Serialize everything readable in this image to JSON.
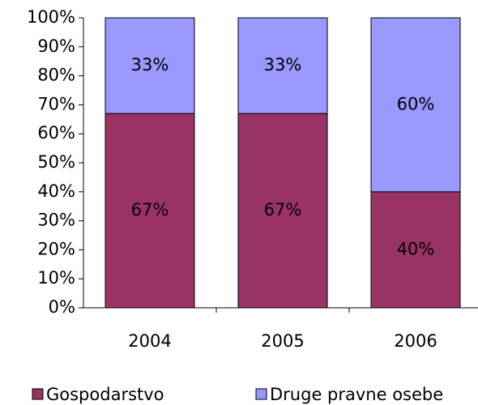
{
  "chart_data": {
    "type": "stacked_bar",
    "categories": [
      "2004",
      "2005",
      "2006"
    ],
    "series": [
      {
        "name": "Gospodarstvo",
        "color": "#993366",
        "values": [
          67,
          67,
          40
        ],
        "value_labels": [
          "67%",
          "67%",
          "40%"
        ]
      },
      {
        "name": "Druge pravne osebe",
        "color": "#9999ff",
        "values": [
          33,
          33,
          60
        ],
        "value_labels": [
          "33%",
          "33%",
          "60%"
        ]
      }
    ],
    "ylim": [
      0,
      100
    ],
    "yticks": [
      {
        "value": 0,
        "label": "0%"
      },
      {
        "value": 10,
        "label": "10%"
      },
      {
        "value": 20,
        "label": "20%"
      },
      {
        "value": 30,
        "label": "30%"
      },
      {
        "value": 40,
        "label": "40%"
      },
      {
        "value": 50,
        "label": "50%"
      },
      {
        "value": 60,
        "label": "60%"
      },
      {
        "value": 70,
        "label": "70%"
      },
      {
        "value": 80,
        "label": "80%"
      },
      {
        "value": 90,
        "label": "90%"
      },
      {
        "value": 100,
        "label": "100%"
      }
    ],
    "legend": "bottom"
  }
}
